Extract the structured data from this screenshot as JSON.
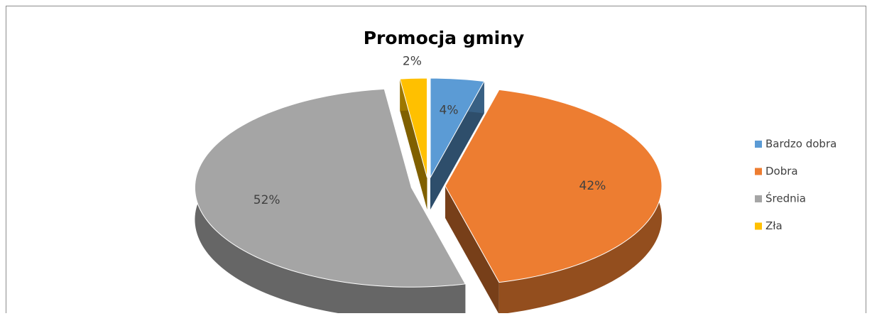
{
  "chart_data": {
    "type": "pie",
    "title": "Promocja gminy",
    "categories": [
      "Bardzo dobra",
      "Dobra",
      "Średnia",
      "Zła"
    ],
    "values": [
      4,
      42,
      52,
      2
    ],
    "value_labels": [
      "4%",
      "42%",
      "52%",
      "2%"
    ],
    "colors": [
      "#5b9bd5",
      "#ed7d31",
      "#a5a5a5",
      "#ffc000"
    ],
    "legend": "right"
  }
}
